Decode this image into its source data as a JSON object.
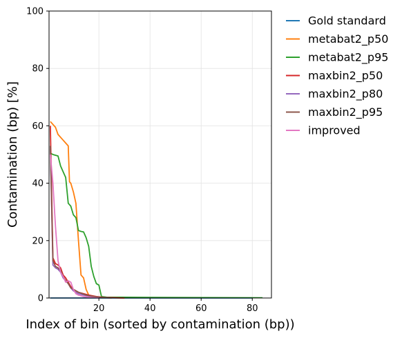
{
  "chart_data": {
    "type": "line",
    "xlabel": "Index of bin (sorted by contamination (bp))",
    "ylabel": "Contamination (bp) [%]",
    "xlim": [
      0.5,
      87.5
    ],
    "ylim": [
      0,
      100
    ],
    "xticks": [
      20,
      40,
      60,
      80
    ],
    "yticks": [
      0,
      20,
      40,
      60,
      80,
      100
    ],
    "grid": true,
    "legend_position": "outside-right",
    "series": [
      {
        "name": "Gold standard",
        "color": "#1f77b4",
        "points": [
          [
            1,
            0
          ],
          [
            80,
            0
          ]
        ]
      },
      {
        "name": "metabat2_p50",
        "color": "#ff7f0e",
        "points": [
          [
            1,
            61.5
          ],
          [
            3,
            59.5
          ],
          [
            4,
            57
          ],
          [
            6,
            55
          ],
          [
            7,
            54
          ],
          [
            8,
            53
          ],
          [
            8.5,
            40.5
          ],
          [
            9,
            40
          ],
          [
            10,
            37
          ],
          [
            11,
            33
          ],
          [
            12,
            20
          ],
          [
            13,
            8
          ],
          [
            14,
            7
          ],
          [
            15,
            3
          ],
          [
            16,
            1
          ],
          [
            18,
            0.5
          ],
          [
            22,
            0.2
          ],
          [
            30,
            0
          ]
        ]
      },
      {
        "name": "metabat2_p95",
        "color": "#2ca02c",
        "points": [
          [
            1,
            50.5
          ],
          [
            2,
            50
          ],
          [
            4,
            49.5
          ],
          [
            5,
            46
          ],
          [
            6,
            44
          ],
          [
            7,
            42
          ],
          [
            8,
            33
          ],
          [
            9,
            32
          ],
          [
            10,
            29
          ],
          [
            11,
            28
          ],
          [
            12,
            23.5
          ],
          [
            13,
            23.2
          ],
          [
            14,
            23
          ],
          [
            15,
            21
          ],
          [
            16,
            18
          ],
          [
            17,
            11
          ],
          [
            18,
            7.5
          ],
          [
            19,
            5
          ],
          [
            20,
            4.5
          ],
          [
            21,
            0.5
          ],
          [
            23,
            0.3
          ],
          [
            40,
            0.2
          ],
          [
            84,
            0.1
          ]
        ]
      },
      {
        "name": "maxbin2_p50",
        "color": "#d62728",
        "points": [
          [
            1,
            60
          ],
          [
            2,
            14
          ],
          [
            3,
            12
          ],
          [
            4,
            11.5
          ],
          [
            5,
            10.5
          ],
          [
            6,
            8
          ],
          [
            7,
            7
          ],
          [
            8,
            5.5
          ],
          [
            9,
            4
          ],
          [
            10,
            3
          ],
          [
            12,
            2
          ],
          [
            14,
            1.5
          ],
          [
            16,
            1
          ],
          [
            19,
            0.5
          ],
          [
            22,
            0.2
          ],
          [
            30,
            0
          ]
        ]
      },
      {
        "name": "maxbin2_p80",
        "color": "#9467bd",
        "points": [
          [
            1,
            52
          ],
          [
            2,
            11.5
          ],
          [
            3,
            10.5
          ],
          [
            4,
            10
          ],
          [
            5,
            9
          ],
          [
            6,
            7
          ],
          [
            7,
            6
          ],
          [
            8,
            5
          ],
          [
            9,
            3.5
          ],
          [
            10,
            2.5
          ],
          [
            12,
            1.5
          ],
          [
            14,
            1
          ],
          [
            17,
            0.5
          ],
          [
            20,
            0.2
          ],
          [
            25,
            0
          ]
        ]
      },
      {
        "name": "maxbin2_p95",
        "color": "#8c564b",
        "points": [
          [
            1,
            53
          ],
          [
            2,
            13
          ],
          [
            3,
            11
          ],
          [
            4,
            10.5
          ],
          [
            5,
            9.5
          ],
          [
            6,
            7.5
          ],
          [
            7,
            6
          ],
          [
            8,
            5
          ],
          [
            9,
            3.5
          ],
          [
            10,
            3
          ],
          [
            12,
            2
          ],
          [
            15,
            1
          ],
          [
            18,
            0.5
          ],
          [
            21,
            0.2
          ],
          [
            25,
            0
          ]
        ]
      },
      {
        "name": "improved",
        "color": "#e377c2",
        "points": [
          [
            1,
            50
          ],
          [
            2,
            40
          ],
          [
            3,
            25
          ],
          [
            4,
            13
          ],
          [
            5,
            9
          ],
          [
            6,
            7.5
          ],
          [
            7,
            5.5
          ],
          [
            8,
            6
          ],
          [
            9,
            5.5
          ],
          [
            10,
            3
          ],
          [
            11,
            1.5
          ],
          [
            12,
            1
          ],
          [
            14,
            0.5
          ],
          [
            17,
            0.2
          ],
          [
            20,
            0
          ]
        ]
      }
    ]
  }
}
